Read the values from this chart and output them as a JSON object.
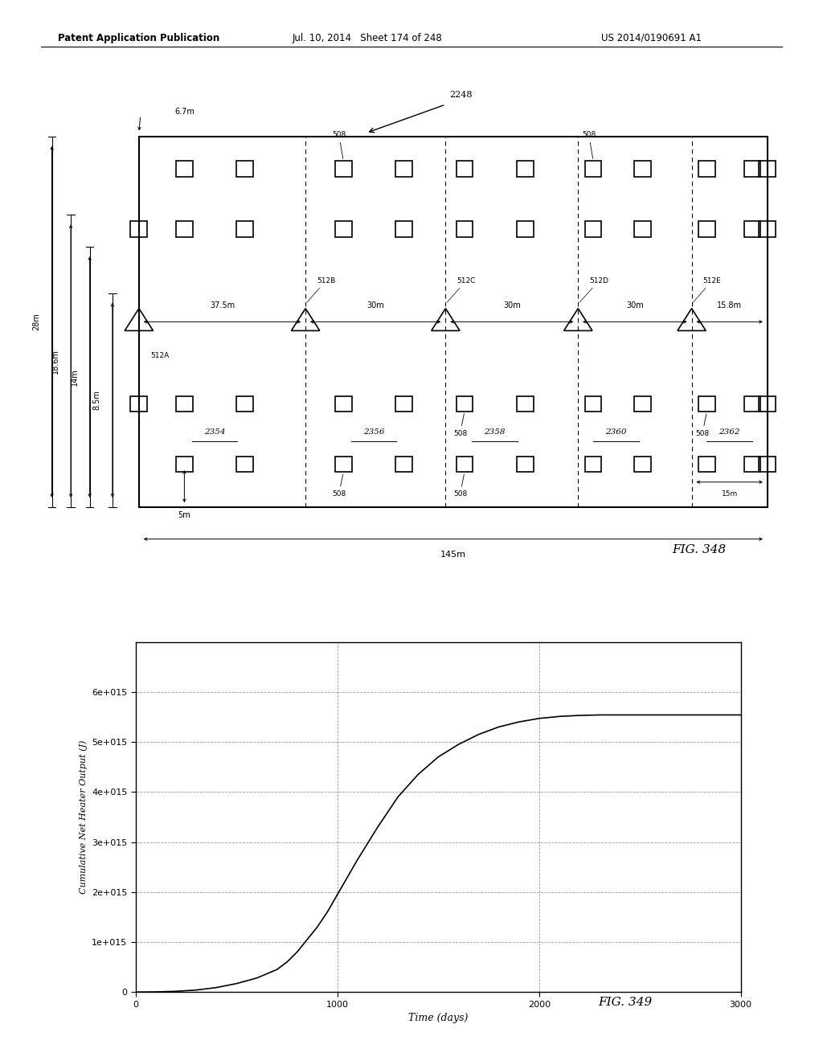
{
  "header_left": "Patent Application Publication",
  "header_mid": "Jul. 10, 2014   Sheet 174 of 248",
  "header_right": "US 2014/0190691 A1",
  "fig348_label": "FIG. 348",
  "fig349_label": "FIG. 349",
  "graph_xlabel": "Time (days)",
  "graph_ylabel": "Cumulative Net Heater Output (J)",
  "graph_xlim": [
    0,
    3000
  ],
  "graph_ylim": [
    0,
    7000000000000000.0
  ],
  "graph_xticks": [
    0,
    1000,
    2000,
    3000
  ],
  "graph_yticks": [
    0,
    1000000000000000.0,
    2000000000000000.0,
    3000000000000000.0,
    4000000000000000.0,
    5000000000000000.0,
    6000000000000000.0
  ],
  "graph_ytick_labels": [
    "0",
    "1e+015",
    "2e+015",
    "3e+015",
    "4e+015",
    "5e+015",
    "6e+015"
  ],
  "graph_data_x": [
    0,
    50,
    100,
    200,
    300,
    400,
    500,
    600,
    700,
    750,
    800,
    850,
    900,
    950,
    1000,
    1050,
    1100,
    1200,
    1300,
    1400,
    1500,
    1600,
    1700,
    1800,
    1900,
    2000,
    2100,
    2200,
    2250,
    2300,
    2400,
    2500,
    2600,
    2700,
    2800,
    2900,
    3000
  ],
  "graph_data_y": [
    0,
    1000000000000.0,
    3000000000000.0,
    15000000000000.0,
    40000000000000.0,
    90000000000000.0,
    170000000000000.0,
    280000000000000.0,
    450000000000000.0,
    600000000000000.0,
    800000000000000.0,
    1050000000000000.0,
    1300000000000000.0,
    1600000000000000.0,
    1950000000000000.0,
    2300000000000000.0,
    2650000000000000.0,
    3300000000000000.0,
    3900000000000000.0,
    4350000000000000.0,
    4700000000000000.0,
    4950000000000000.0,
    5150000000000000.0,
    5300000000000000.0,
    5400000000000000.0,
    5470000000000000.0,
    5510000000000000.0,
    5530000000000000.0,
    5535000000000000.0,
    5540000000000000.0,
    5540000000000000.0,
    5540000000000000.0,
    5540000000000000.0,
    5540000000000000.0,
    5540000000000000.0,
    5540000000000000.0,
    5540000000000000.0
  ]
}
